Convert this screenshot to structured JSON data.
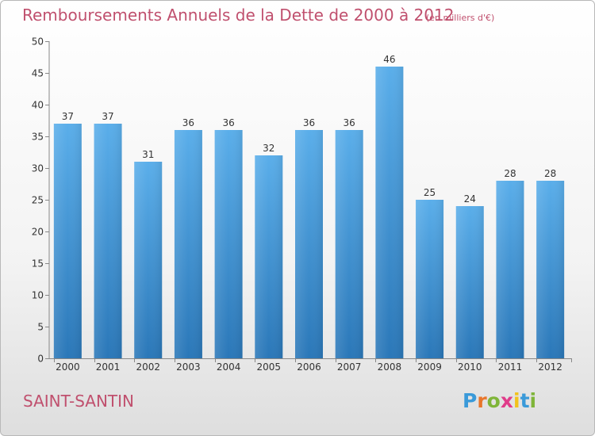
{
  "header": {
    "title": "Remboursements Annuels de la Dette de 2000 à 2012",
    "subtitle": "(en milliers d'€)"
  },
  "footer": {
    "commune": "SAINT-SANTIN",
    "logo_letters": [
      "P",
      "r",
      "o",
      "x",
      "i",
      "t",
      "i"
    ],
    "logo_colors": [
      "#3a9ad9",
      "#e8762b",
      "#7fb539",
      "#e03c8a",
      "#f2c21b",
      "#3a9ad9",
      "#7fb539"
    ]
  },
  "colors": {
    "bar_top": "#5aaeea",
    "bar_bottom": "#2a77b8",
    "text_accent": "#c0506e"
  },
  "chart_data": {
    "type": "bar",
    "title": "Remboursements Annuels de la Dette de 2000 à 2012",
    "subtitle": "(en milliers d'€)",
    "xlabel": "",
    "ylabel": "",
    "categories": [
      "2000",
      "2001",
      "2002",
      "2003",
      "2004",
      "2005",
      "2006",
      "2007",
      "2008",
      "2009",
      "2010",
      "2011",
      "2012"
    ],
    "values": [
      37,
      37,
      31,
      36,
      36,
      32,
      36,
      36,
      46,
      25,
      24,
      28,
      28
    ],
    "ylim": [
      0,
      50
    ],
    "yticks": [
      0,
      5,
      10,
      15,
      20,
      25,
      30,
      35,
      40,
      45,
      50
    ],
    "grid": false,
    "data_labels": true
  }
}
